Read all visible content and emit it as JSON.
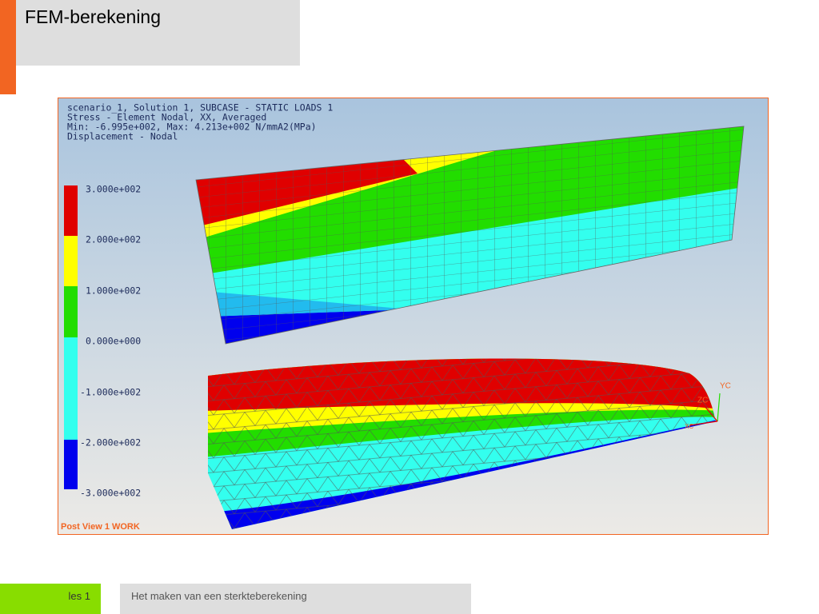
{
  "header": {
    "title": "FEM-berekening"
  },
  "viewer": {
    "info_lines": [
      "scenario_1, Solution 1, SUBCASE - STATIC LOADS 1",
      "Stress - Element Nodal, XX, Averaged",
      "Min: -6.995e+002, Max: 4.213e+002 N/mmA2(MPa)",
      "Displacement - Nodal"
    ],
    "legend_labels": [
      "3.000e+002",
      "2.000e+002",
      "1.000e+002",
      "0.000e+000",
      "-1.000e+002",
      "-2.000e+002",
      "-3.000e+002"
    ],
    "axes": [
      "YC",
      "ZC",
      "XC"
    ],
    "view_label": "Post View 1 WORK"
  },
  "footer": {
    "lesson": "les 1",
    "subject": "Het maken van een sterkteberekening"
  }
}
